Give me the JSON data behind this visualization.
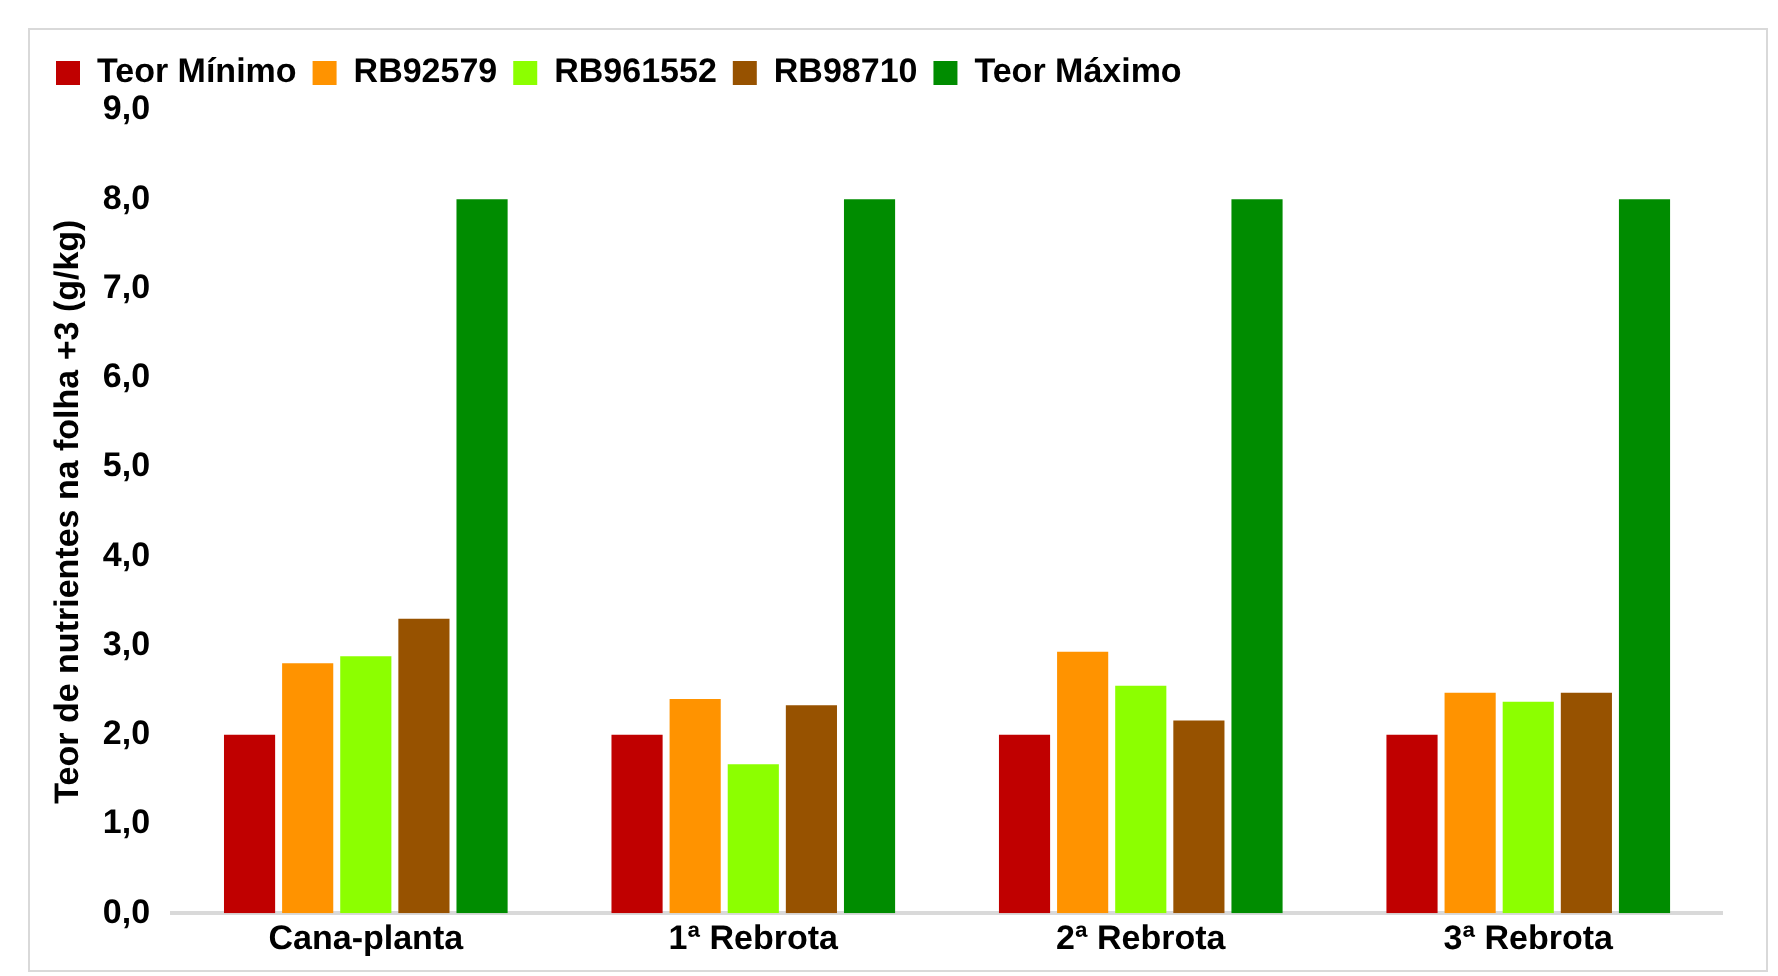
{
  "chart_data": {
    "type": "bar",
    "ylabel": "Teor de nutrientes na folha +3 (g/kg)",
    "categories": [
      "Cana-planta",
      "1ª Rebrota",
      "2ª Rebrota",
      "3ª Rebrota"
    ],
    "series": [
      {
        "name": "Teor Mínimo",
        "color": "#c00000",
        "values": [
          2.0,
          2.0,
          2.0,
          2.0
        ]
      },
      {
        "name": "RB92579",
        "color": "#ff9300",
        "values": [
          2.8,
          2.4,
          2.93,
          2.47
        ]
      },
      {
        "name": "RB961552",
        "color": "#8cff00",
        "values": [
          2.88,
          1.67,
          2.55,
          2.37
        ]
      },
      {
        "name": "RB98710",
        "color": "#975200",
        "values": [
          3.3,
          2.33,
          2.16,
          2.47
        ]
      },
      {
        "name": "Teor Máximo",
        "color": "#008c00",
        "values": [
          8.0,
          8.0,
          8.0,
          8.0
        ]
      }
    ],
    "ylim": [
      0,
      9
    ],
    "yticks": [
      {
        "value": 0,
        "label": "0,0"
      },
      {
        "value": 1,
        "label": "1,0"
      },
      {
        "value": 2,
        "label": "2,0"
      },
      {
        "value": 3,
        "label": "3,0"
      },
      {
        "value": 4,
        "label": "4,0"
      },
      {
        "value": 5,
        "label": "5,0"
      },
      {
        "value": 6,
        "label": "6,0"
      },
      {
        "value": 7,
        "label": "7,0"
      },
      {
        "value": 8,
        "label": "8,0"
      },
      {
        "value": 9,
        "label": "9,0"
      }
    ],
    "grid": false,
    "legend": "top left"
  }
}
